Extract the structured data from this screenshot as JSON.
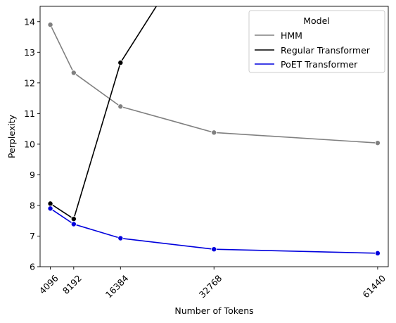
{
  "chart_data": {
    "type": "line",
    "xlabel": "Number of Tokens",
    "ylabel": "Perplexity",
    "x_ticks": [
      4096,
      8192,
      16384,
      32768,
      61440
    ],
    "y_ticks": [
      6,
      7,
      8,
      9,
      10,
      11,
      12,
      13,
      14
    ],
    "xlim": [
      2300,
      63300
    ],
    "ylim": [
      6,
      14.5
    ],
    "grid": false,
    "legend_title": "Model",
    "legend_position": "top-right",
    "series": [
      {
        "name": "HMM",
        "color": "#808080",
        "points": [
          [
            4096,
            13.9
          ],
          [
            8192,
            12.33
          ],
          [
            16384,
            11.23
          ],
          [
            32768,
            10.38
          ],
          [
            61440,
            10.04
          ]
        ]
      },
      {
        "name": "Regular Transformer",
        "color": "#000000",
        "points": [
          [
            4096,
            8.06
          ],
          [
            8192,
            7.56
          ],
          [
            16384,
            12.66
          ],
          [
            23000,
            14.6
          ]
        ]
      },
      {
        "name": "PoET Transformer",
        "color": "#0000dd",
        "points": [
          [
            4096,
            7.9
          ],
          [
            8192,
            7.39
          ],
          [
            16384,
            6.93
          ],
          [
            32768,
            6.57
          ],
          [
            61440,
            6.44
          ]
        ]
      }
    ],
    "marker_series_points": {
      "Regular Transformer": 3
    }
  }
}
